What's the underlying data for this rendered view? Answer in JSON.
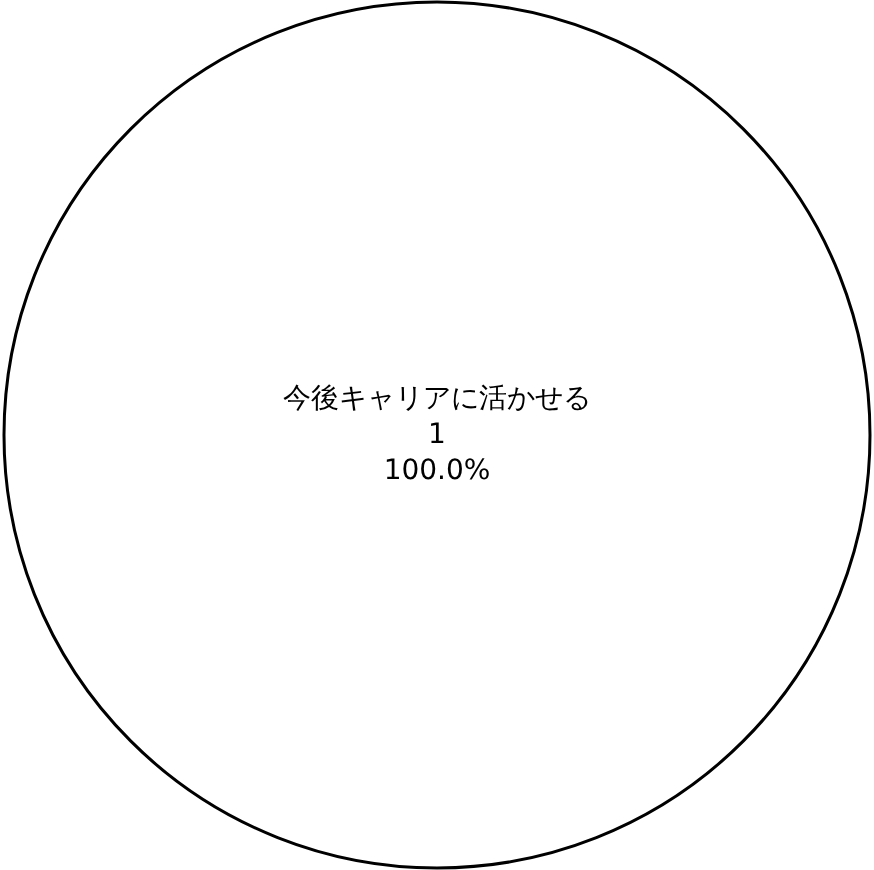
{
  "chart_data": {
    "type": "pie",
    "categories": [
      "今後キャリアに活かせる"
    ],
    "values": [
      1
    ],
    "colors": [
      "#ffffff"
    ],
    "data_labels": true,
    "annotations": [
      "100.0%"
    ],
    "legend": false
  }
}
